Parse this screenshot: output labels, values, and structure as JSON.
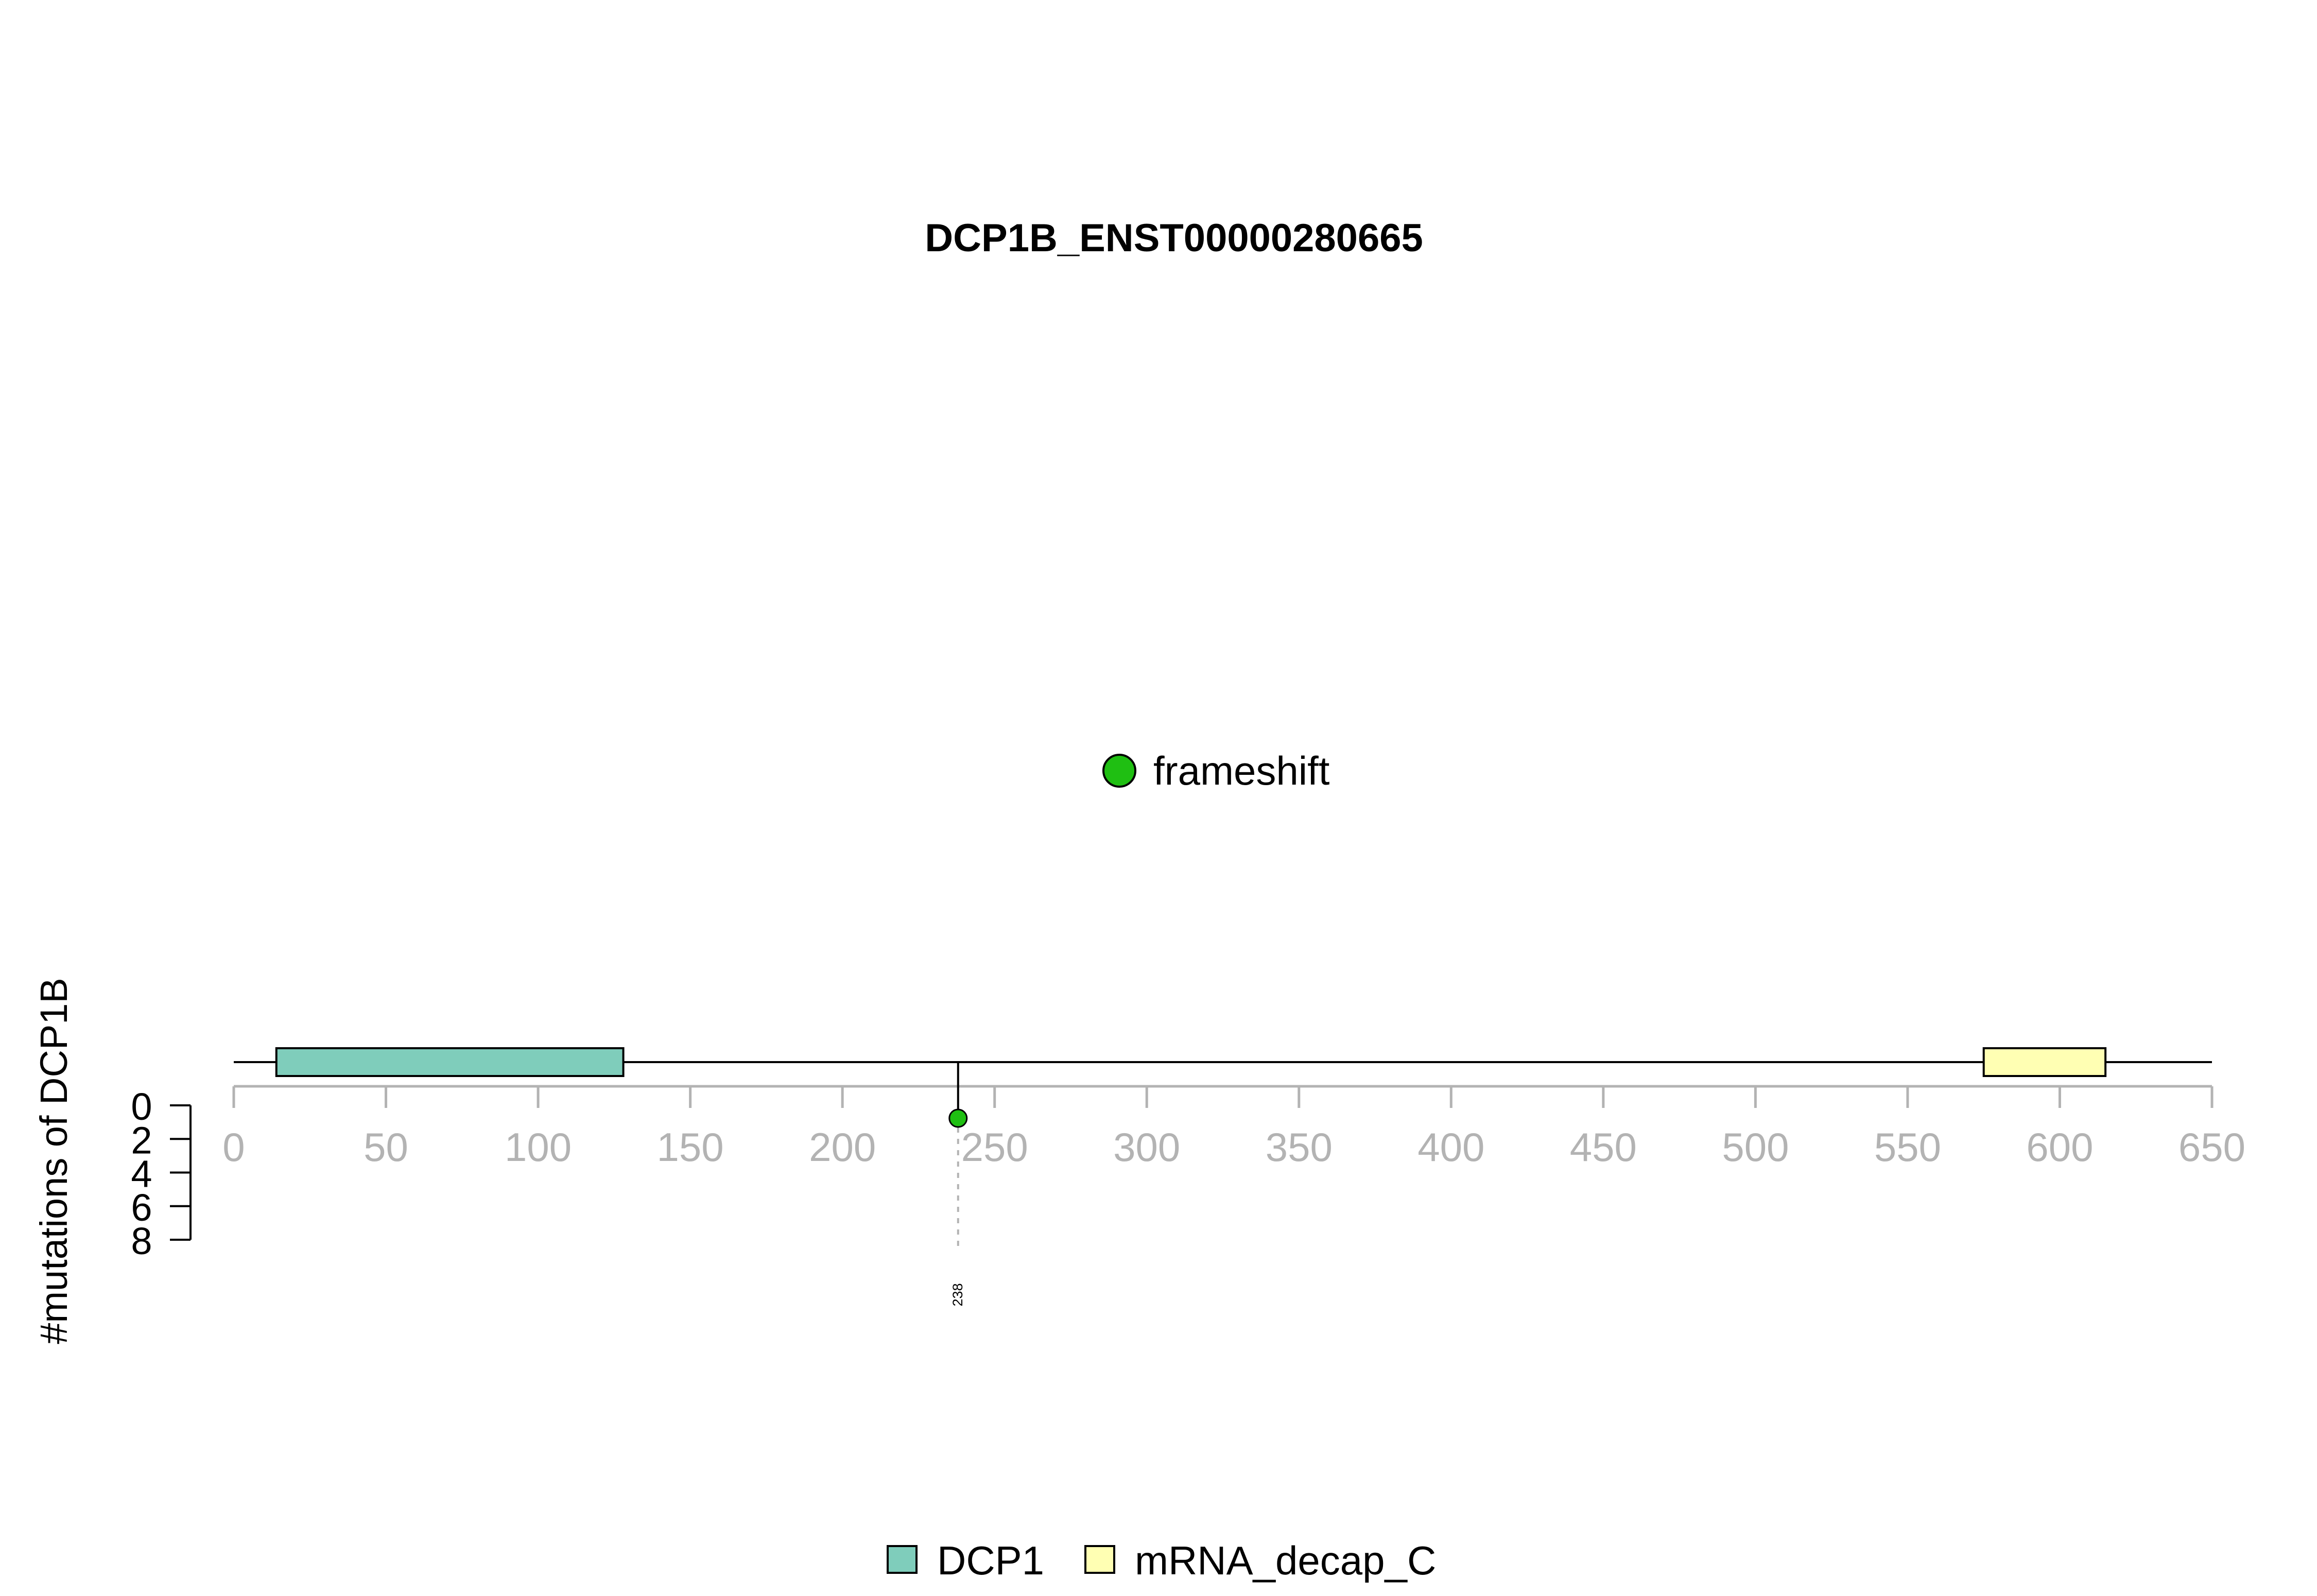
{
  "chart_data": {
    "type": "lollipop",
    "title": "DCP1B_ENST00000280665",
    "ylabel": "#mutations of DCP1B",
    "xlim": [
      0,
      650
    ],
    "x_ticks": [
      0,
      50,
      100,
      150,
      200,
      250,
      300,
      350,
      400,
      450,
      500,
      550,
      600,
      650
    ],
    "ylim": [
      0,
      8
    ],
    "y_ticks": [
      0,
      2,
      4,
      6,
      8
    ],
    "protein_length": 650,
    "domains": [
      {
        "name": "DCP1",
        "start": 14,
        "end": 128,
        "color": "#7fcdbb"
      },
      {
        "name": "mRNA_decap_C",
        "start": 575,
        "end": 615,
        "color": "#ffffb3"
      }
    ],
    "mutations": [
      {
        "position": 238,
        "label": "238",
        "count": 1,
        "type": "frameshift",
        "color": "#1fbf12"
      }
    ],
    "mutation_legend": [
      {
        "label": "frameshift",
        "color": "#1fbf12"
      }
    ],
    "domain_legend_placement": "bottom-center",
    "mutation_legend_placement": "center"
  }
}
